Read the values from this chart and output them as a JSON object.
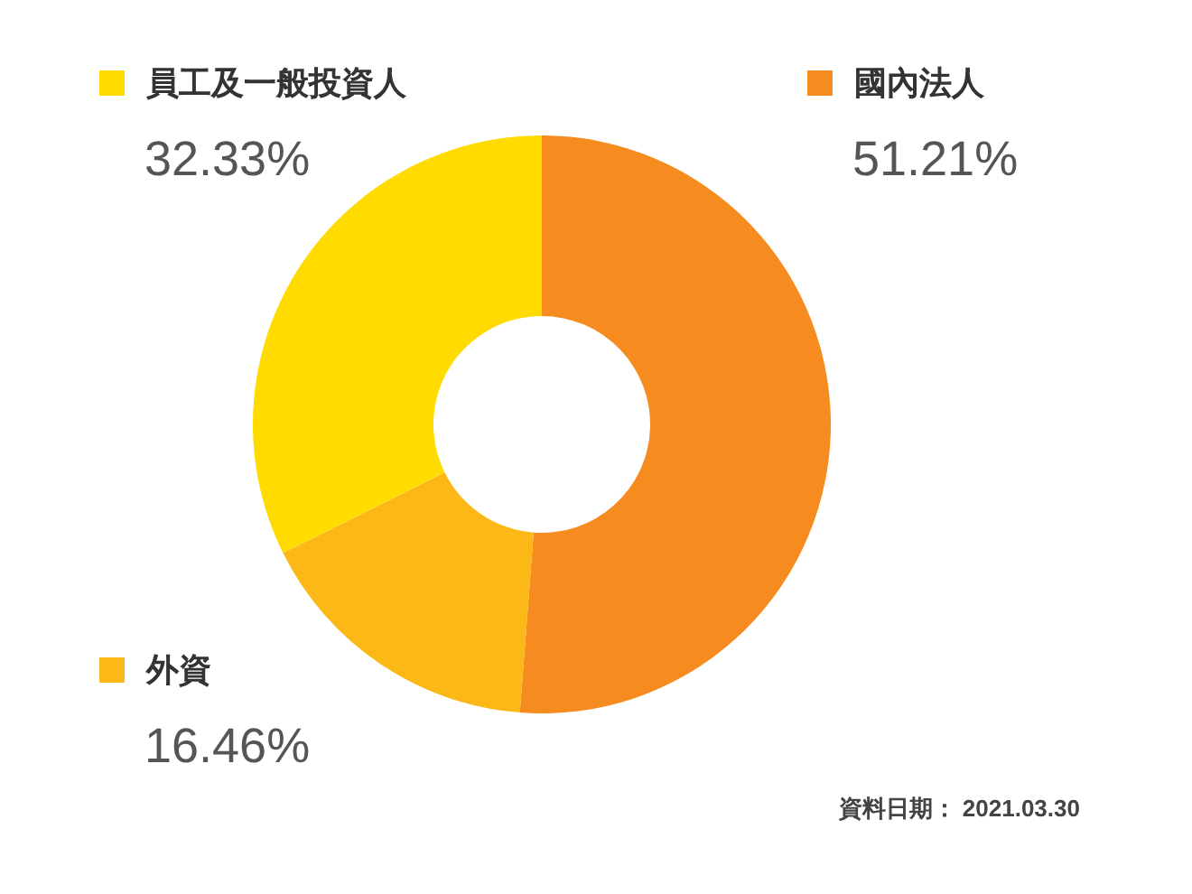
{
  "chart_data": {
    "type": "donut",
    "categories": [
      "國內法人",
      "外資",
      "員工及一般投資人"
    ],
    "values": [
      51.21,
      16.46,
      32.33
    ],
    "colors": [
      "#f68b1f",
      "#fbb817",
      "#ffdb00"
    ],
    "value_labels": [
      "51.21%",
      "16.46%",
      "32.33%"
    ],
    "legend": "top",
    "annotations": [
      "資料日期： 2021.03.30"
    ]
  }
}
